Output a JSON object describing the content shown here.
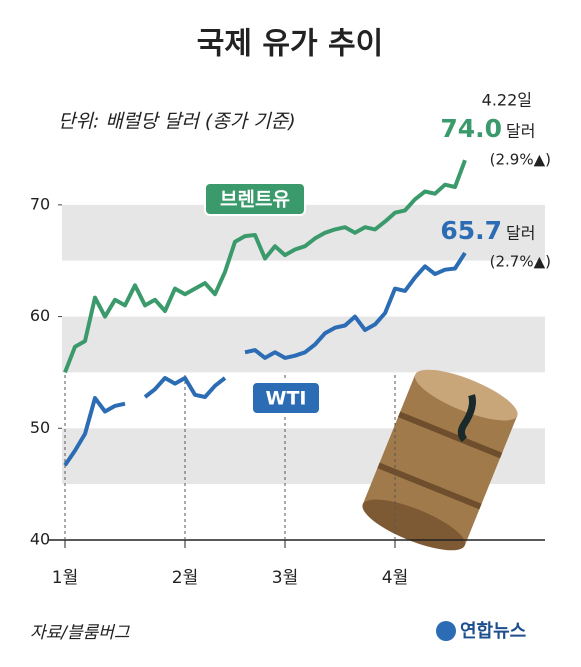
{
  "chart_data": {
    "type": "line",
    "title": "국제 유가 추이",
    "subtitle": "단위: 배럴당 달러 (종가 기준)",
    "source": "자료/블룸버그",
    "logo": "연합뉴스",
    "date_annotation": "4.22일",
    "categories": [
      "1월",
      null,
      null,
      null,
      null,
      null,
      null,
      null,
      null,
      null,
      null,
      null,
      "2월",
      null,
      null,
      null,
      null,
      null,
      null,
      null,
      null,
      null,
      "3월",
      null,
      null,
      null,
      null,
      null,
      null,
      null,
      null,
      null,
      null,
      "4월",
      null,
      null,
      null,
      null,
      null,
      null,
      null
    ],
    "ylim": [
      40,
      75
    ],
    "yticks": [
      40,
      50,
      60,
      70
    ],
    "series": [
      {
        "name": "브렌트유",
        "color": "#3b9a6b",
        "values": [
          55,
          57.3,
          57.8,
          61.7,
          60,
          61.5,
          61,
          62.8,
          61,
          61.5,
          60.5,
          62.5,
          62,
          62.5,
          63,
          62,
          64,
          66.7,
          67.2,
          67.3,
          65.2,
          66.3,
          65.5,
          66,
          66.3,
          67,
          67.5,
          67.8,
          68,
          67.5,
          68,
          67.8,
          68.5,
          69.3,
          69.5,
          70.5,
          71.2,
          71,
          71.8,
          71.6,
          74.0
        ],
        "value_labels": [
          null,
          null,
          null,
          null,
          null,
          null,
          null,
          null,
          null,
          null,
          null,
          null,
          null,
          null,
          null,
          null,
          null,
          null,
          null,
          null,
          null,
          null,
          null,
          null,
          null,
          null,
          null,
          null,
          null,
          null,
          null,
          null,
          null,
          null,
          null,
          null,
          null,
          null,
          null,
          null,
          "74.0"
        ],
        "unit_label": "달러",
        "change_label": "(2.9%▲)"
      },
      {
        "name": "WTI",
        "color": "#2b6cb4",
        "values": [
          46.7,
          48,
          49.5,
          52.7,
          51.5,
          52,
          52.2,
          null,
          52.8,
          53.5,
          54.5,
          54,
          54.5,
          53,
          52.8,
          53.8,
          54.5,
          null,
          56.8,
          57,
          56.3,
          56.8,
          56.3,
          56.5,
          56.8,
          57.5,
          58.5,
          59,
          59.2,
          60,
          58.8,
          59.3,
          60.3,
          62.5,
          62.3,
          63.5,
          64.5,
          63.8,
          64.2,
          64.3,
          65.7
        ],
        "value_labels": [
          null,
          null,
          null,
          null,
          null,
          null,
          null,
          null,
          null,
          null,
          null,
          null,
          null,
          null,
          null,
          null,
          null,
          null,
          null,
          null,
          null,
          null,
          null,
          null,
          null,
          null,
          null,
          null,
          null,
          null,
          null,
          null,
          null,
          null,
          null,
          null,
          null,
          null,
          null,
          null,
          "65.7"
        ],
        "unit_label": "달러",
        "change_label": "(2.7%▲)"
      }
    ]
  }
}
